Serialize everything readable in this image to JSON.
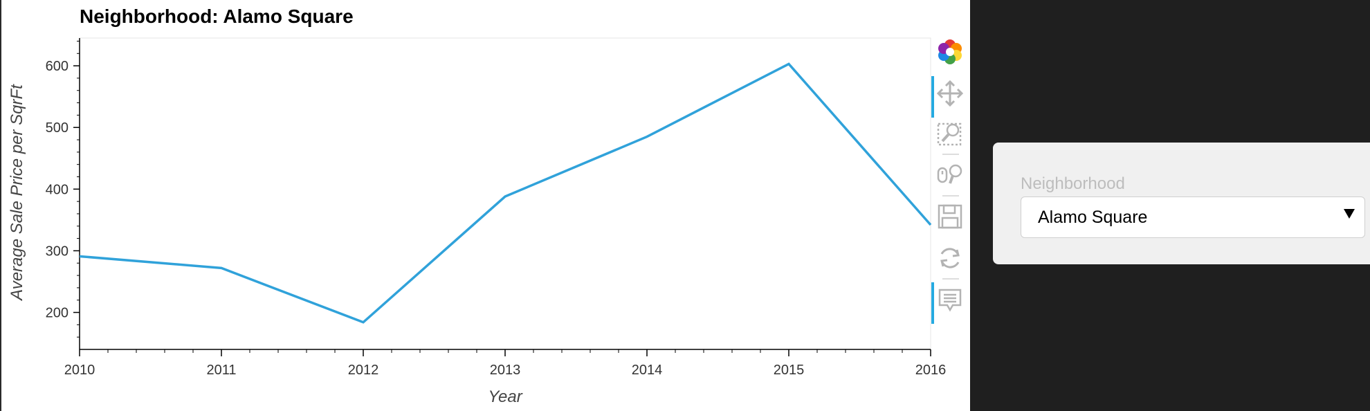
{
  "chart_data": {
    "type": "line",
    "title": "Neighborhood: Alamo Square",
    "xlabel": "Year",
    "ylabel": "Average Sale Price per SqrFt",
    "x": [
      2010,
      2011,
      2012,
      2013,
      2014,
      2015,
      2016
    ],
    "series": [
      {
        "values": [
          291,
          272,
          184,
          388,
          485,
          603,
          342
        ]
      }
    ],
    "xlim": [
      2010,
      2016
    ],
    "ylim": [
      140,
      645
    ],
    "yticks": [
      200,
      300,
      400,
      500,
      600
    ],
    "xticks": [
      2010,
      2011,
      2012,
      2013,
      2014,
      2015,
      2016
    ],
    "line_color": "#30a2da",
    "grid": false,
    "legend": "none"
  },
  "toolbar": {
    "tools": [
      {
        "name": "bokeh-logo-icon",
        "active": false
      },
      {
        "name": "pan-icon",
        "active": true
      },
      {
        "name": "box-zoom-icon",
        "active": false
      },
      {
        "name": "wheel-zoom-icon",
        "active": false
      },
      {
        "name": "save-icon",
        "active": false
      },
      {
        "name": "reset-icon",
        "active": false
      },
      {
        "name": "hover-icon",
        "active": true
      }
    ],
    "accent": "#26aae1"
  },
  "widget": {
    "label": "Neighborhood",
    "selected": "Alamo Square"
  }
}
